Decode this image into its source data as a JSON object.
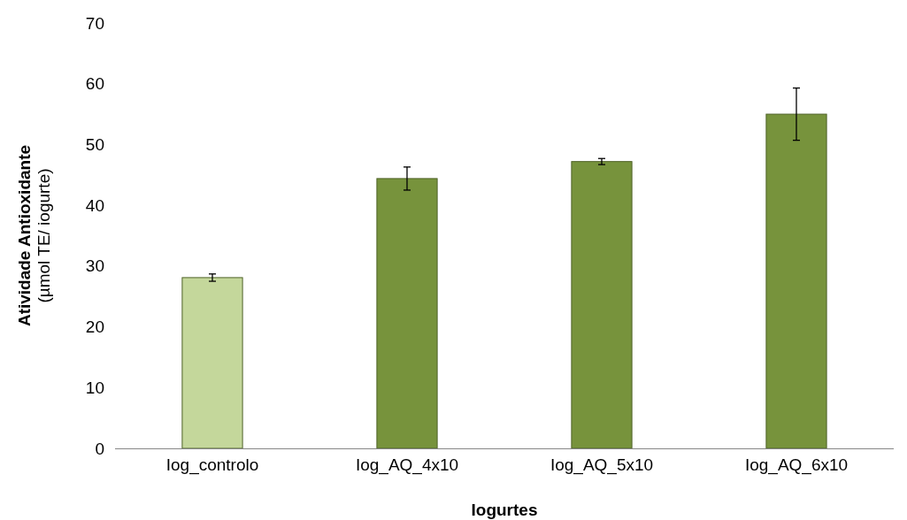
{
  "chart_data": {
    "type": "bar",
    "xlabel": "Iogurtes",
    "ylabel": "Atividade Antioxidante\n(µmol TE/  iogurte)",
    "categories": [
      "Iog_controlo",
      "Iog_AQ_4x10",
      "Iog_AQ_5x10",
      "Iog_AQ_6x10"
    ],
    "values": [
      28.1,
      44.4,
      47.2,
      55.0
    ],
    "colors": [
      "#c4d79b",
      "#77933c",
      "#77933c",
      "#77933c"
    ],
    "errors": [
      0.6,
      1.9,
      0.5,
      4.3
    ],
    "ylim": [
      0,
      70
    ],
    "yticks": [
      0,
      10,
      20,
      30,
      40,
      50,
      60,
      70
    ],
    "grid": false
  }
}
